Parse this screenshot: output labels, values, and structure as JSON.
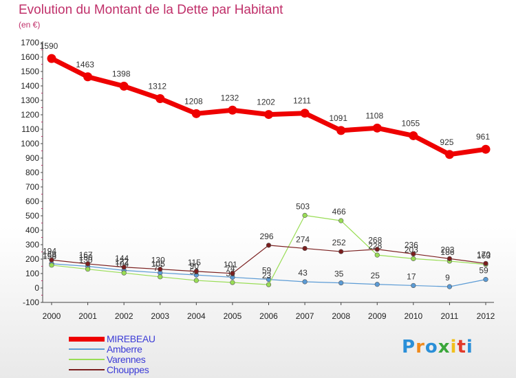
{
  "title": "Evolution du Montant de la Dette par Habitant",
  "subtitle": "(en €)",
  "logo": {
    "text": "Proxiti",
    "colors": [
      "#2a8fd8",
      "#f08a1c",
      "#2a8fd8",
      "#3aa63a",
      "#f0c01c",
      "#e23a2a",
      "#2a8fd8"
    ]
  },
  "chart_data": {
    "type": "line",
    "title": "Evolution du Montant de la Dette par Habitant",
    "subtitle": "(en €)",
    "x": [
      "2000",
      "2001",
      "2002",
      "2003",
      "2004",
      "2005",
      "2006",
      "2007",
      "2008",
      "2009",
      "2010",
      "2011",
      "2012"
    ],
    "ylim": [
      -100,
      1700
    ],
    "yticks": [
      -100,
      0,
      100,
      200,
      300,
      400,
      500,
      600,
      700,
      800,
      900,
      1000,
      1100,
      1200,
      1300,
      1400,
      1500,
      1600,
      1700
    ],
    "grid": false,
    "legend_position": "bottom-left",
    "series": [
      {
        "name": "MIREBEAU",
        "color": "#ee0000",
        "values": [
          1590,
          1463,
          1398,
          1312,
          1208,
          1232,
          1202,
          1211,
          1091,
          1108,
          1055,
          925,
          961
        ],
        "labels": [
          "1590",
          "1463",
          "1398",
          "1312",
          "1208",
          "1232",
          "1202",
          "1211",
          "1091",
          "1108",
          "1055",
          "925",
          "961"
        ]
      },
      {
        "name": "Amberre",
        "color": "#5b9bd5",
        "values": [
          168,
          150,
          122,
          105,
          90,
          74,
          59,
          43,
          35,
          25,
          17,
          9,
          59
        ],
        "labels": [
          "168",
          "150",
          "122",
          "105",
          "90",
          "74",
          "59",
          "43",
          "35",
          "25",
          "17",
          "9",
          "59"
        ]
      },
      {
        "name": "Varennes",
        "color": "#99dd55",
        "values": [
          158,
          130,
          104,
          77,
          52,
          38,
          23,
          503,
          466,
          228,
          203,
          186,
          163
        ],
        "labels": [
          "158",
          "130",
          "104",
          "77",
          "52",
          "38",
          "23",
          "503",
          "466",
          "228",
          "203",
          "186",
          "163"
        ]
      },
      {
        "name": "Chouppes",
        "color": "#7a1e1e",
        "values": [
          194,
          167,
          144,
          130,
          115,
          101,
          296,
          274,
          252,
          268,
          236,
          203,
          170
        ],
        "labels": [
          "194",
          "167",
          "144",
          "130",
          "115",
          "101",
          "296",
          "274",
          "252",
          "268",
          "236",
          "203",
          "170"
        ]
      }
    ]
  }
}
